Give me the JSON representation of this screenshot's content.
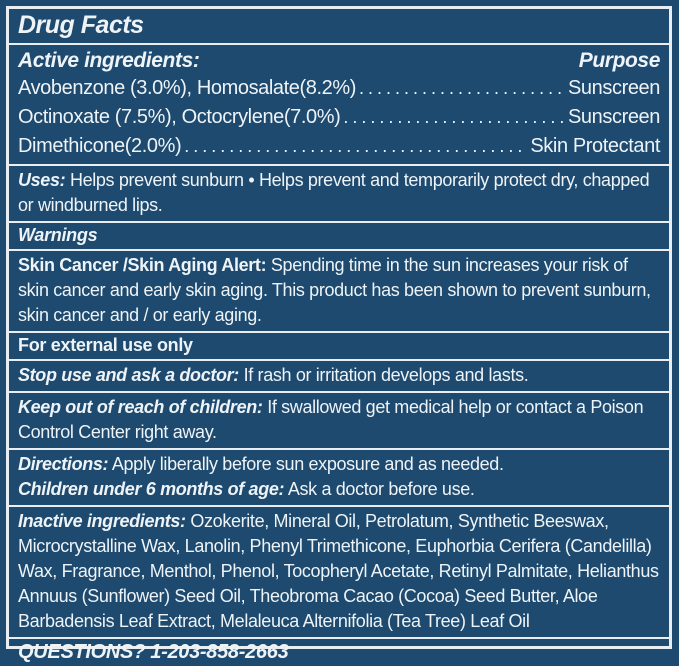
{
  "colors": {
    "background": "#1d4a6e",
    "text": "#eef3f7",
    "rule_lines": "#e8eef2"
  },
  "title": "Drug Facts",
  "active_ingredients": {
    "heading": "Active ingredients:",
    "purpose_heading": "Purpose",
    "rows": [
      {
        "name": "Avobenzone (3.0%), Homosalate(8.2%)",
        "purpose": "Sunscreen"
      },
      {
        "name": "Octinoxate (7.5%), Octocrylene(7.0%)",
        "purpose": "Sunscreen"
      },
      {
        "name": "Dimethicone(2.0%)",
        "purpose": "Skin Protectant"
      }
    ]
  },
  "uses": {
    "lead": "Uses:",
    "text": "Helps prevent sunburn • Helps prevent and temporarily protect dry, chapped or windburned lips."
  },
  "warnings": {
    "heading": "Warnings"
  },
  "skin_alert": {
    "lead": "Skin Cancer /Skin Aging Alert:",
    "text": "Spending time in the sun increases your risk of skin cancer and early skin aging. This product has been shown to prevent sunburn, skin cancer and / or early aging."
  },
  "external_use": {
    "text": "For external use only"
  },
  "stop_use": {
    "lead": "Stop use and ask a doctor:",
    "text": "If rash or irritation develops and lasts."
  },
  "keep_out": {
    "lead": "Keep out of reach of children:",
    "text": "If swallowed get medical help or contact a Poison Control Center right away."
  },
  "directions": {
    "lead": "Directions:",
    "text": "Apply liberally before sun exposure and as needed."
  },
  "children": {
    "lead": "Children under 6 months of age:",
    "text": "Ask a doctor before use."
  },
  "inactive_ingredients": {
    "lead": "Inactive ingredients:",
    "text": "Ozokerite, Mineral Oil, Petrolatum, Synthetic Beeswax, Microcrystalline Wax, Lanolin, Phenyl Trimethicone, Euphorbia Cerifera (Candelilla) Wax, Fragrance, Menthol, Phenol, Tocopheryl Acetate, Retinyl Palmitate, Helianthus Annuus (Sunflower) Seed Oil, Theobroma Cacao (Cocoa) Seed Butter, Aloe Barbadensis Leaf Extract, Melaleuca Alternifolia (Tea Tree) Leaf Oil"
  },
  "questions": {
    "text": "QUESTIONS? 1-203-858-2663"
  }
}
